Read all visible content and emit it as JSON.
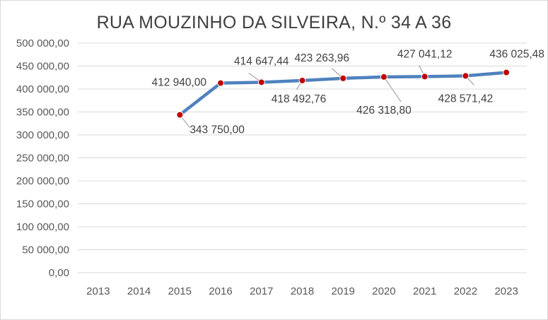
{
  "chart_data": {
    "type": "line",
    "title": "RUA MOUZINHO DA SILVEIRA, N.º 34 A 36",
    "xlabel": "",
    "ylabel": "",
    "categories": [
      "2013",
      "2014",
      "2015",
      "2016",
      "2017",
      "2018",
      "2019",
      "2020",
      "2021",
      "2022",
      "2023"
    ],
    "series": [
      {
        "values": [
          null,
          null,
          343750.0,
          412940.0,
          414647.44,
          418492.76,
          423263.96,
          426318.8,
          427041.12,
          428571.42,
          436025.48
        ],
        "labels": [
          null,
          null,
          "343 750,00",
          "412 940,00",
          "414 647,44",
          "418 492,76",
          "423 263,96",
          "426 318,80",
          "427 041,12",
          "428 571,42",
          "436 025,48"
        ]
      }
    ],
    "ylim": [
      0,
      500000
    ],
    "yticks": [
      0,
      50000,
      100000,
      150000,
      200000,
      250000,
      300000,
      350000,
      400000,
      450000,
      500000
    ],
    "ytick_labels": [
      "0,00",
      "50 000,00",
      "100 000,00",
      "150 000,00",
      "200 000,00",
      "250 000,00",
      "300 000,00",
      "350 000,00",
      "400 000,00",
      "450 000,00",
      "500 000,00"
    ],
    "grid": true,
    "legend": "none",
    "colors": {
      "line": "#4f81bd",
      "marker_fill": "#c00000",
      "grid": "#d9d9d9",
      "leader": "#a6a6a6"
    }
  }
}
